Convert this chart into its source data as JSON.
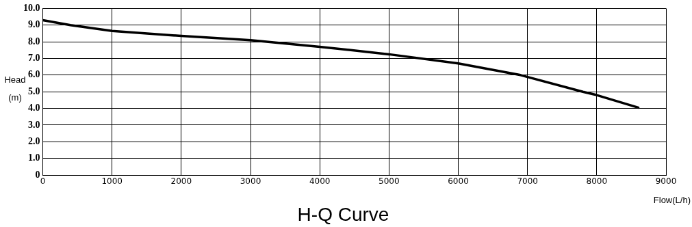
{
  "chart_data": {
    "type": "line",
    "title": "H-Q Curve",
    "xlabel": "Flow(L/h)",
    "ylabel": "Head\n(m)",
    "x": [
      0,
      400,
      1000,
      2000,
      3000,
      4000,
      5000,
      6000,
      6900,
      7800,
      8000,
      8600
    ],
    "series": [
      {
        "color": "#000000",
        "values": [
          9.3,
          9.0,
          8.65,
          8.35,
          8.1,
          7.7,
          7.25,
          6.7,
          6.0,
          5.0,
          4.8,
          4.05
        ]
      }
    ],
    "xlim": [
      0,
      9000
    ],
    "xticks": [
      0,
      1000,
      2000,
      3000,
      4000,
      5000,
      6000,
      7000,
      8000,
      9000
    ],
    "ylim": [
      0,
      10
    ],
    "yticks": [
      0,
      {
        "value": 1,
        "label": "1.0"
      },
      {
        "value": 2,
        "label": "2.0"
      },
      {
        "value": 3,
        "label": "3.0"
      },
      {
        "value": 4,
        "label": "4.0"
      },
      {
        "value": 5,
        "label": "5.0"
      },
      {
        "value": 6,
        "label": "6.0"
      },
      {
        "value": 7,
        "label": "7.0"
      },
      {
        "value": 8,
        "label": "8.0"
      },
      {
        "value": 9,
        "label": "9.0"
      },
      {
        "value": 10,
        "label": "10.0"
      }
    ],
    "grid": true,
    "marker": "none",
    "line_style": "solid",
    "legend": false
  }
}
